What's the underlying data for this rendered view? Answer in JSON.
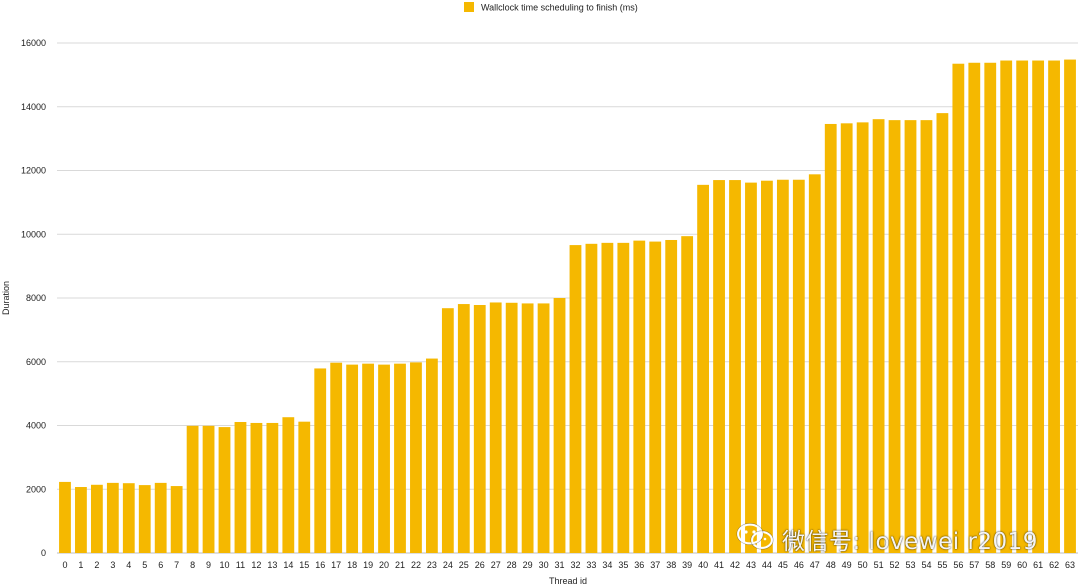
{
  "chart_data": {
    "type": "bar",
    "title": "",
    "xlabel": "Thread id",
    "ylabel": "Duration",
    "ylim": [
      0,
      16000
    ],
    "yticks": [
      0,
      2000,
      4000,
      6000,
      8000,
      10000,
      12000,
      14000,
      16000
    ],
    "grid": true,
    "legend_position": "top-center",
    "bar_color": "#f5b800",
    "grid_color": "#d9d9d9",
    "categories": [
      "0",
      "1",
      "2",
      "3",
      "4",
      "5",
      "6",
      "7",
      "8",
      "9",
      "10",
      "11",
      "12",
      "13",
      "14",
      "15",
      "16",
      "17",
      "18",
      "19",
      "20",
      "21",
      "22",
      "23",
      "24",
      "25",
      "26",
      "27",
      "28",
      "29",
      "30",
      "31",
      "32",
      "33",
      "34",
      "35",
      "36",
      "37",
      "38",
      "39",
      "40",
      "41",
      "42",
      "43",
      "44",
      "45",
      "46",
      "47",
      "48",
      "49",
      "50",
      "51",
      "52",
      "53",
      "54",
      "55",
      "56",
      "57",
      "58",
      "59",
      "60",
      "61",
      "62",
      "63"
    ],
    "series": [
      {
        "name": "Wallclock time scheduling to finish (ms)",
        "values": [
          2230,
          2070,
          2140,
          2200,
          2190,
          2130,
          2200,
          2100,
          3990,
          3990,
          3950,
          4110,
          4080,
          4080,
          4260,
          4120,
          5790,
          5970,
          5910,
          5940,
          5910,
          5940,
          5980,
          6100,
          7680,
          7810,
          7780,
          7860,
          7850,
          7830,
          7830,
          8000,
          9660,
          9700,
          9730,
          9730,
          9800,
          9770,
          9820,
          9940,
          11550,
          11700,
          11700,
          11620,
          11680,
          11710,
          11710,
          11880,
          13460,
          13480,
          13510,
          13610,
          13580,
          13580,
          13580,
          13800,
          15350,
          15380,
          15380,
          15450,
          15450,
          15450,
          15450,
          15480
        ]
      }
    ]
  },
  "watermark": {
    "text": "微信号: lovewei r2019",
    "icon": "wechat-icon"
  }
}
